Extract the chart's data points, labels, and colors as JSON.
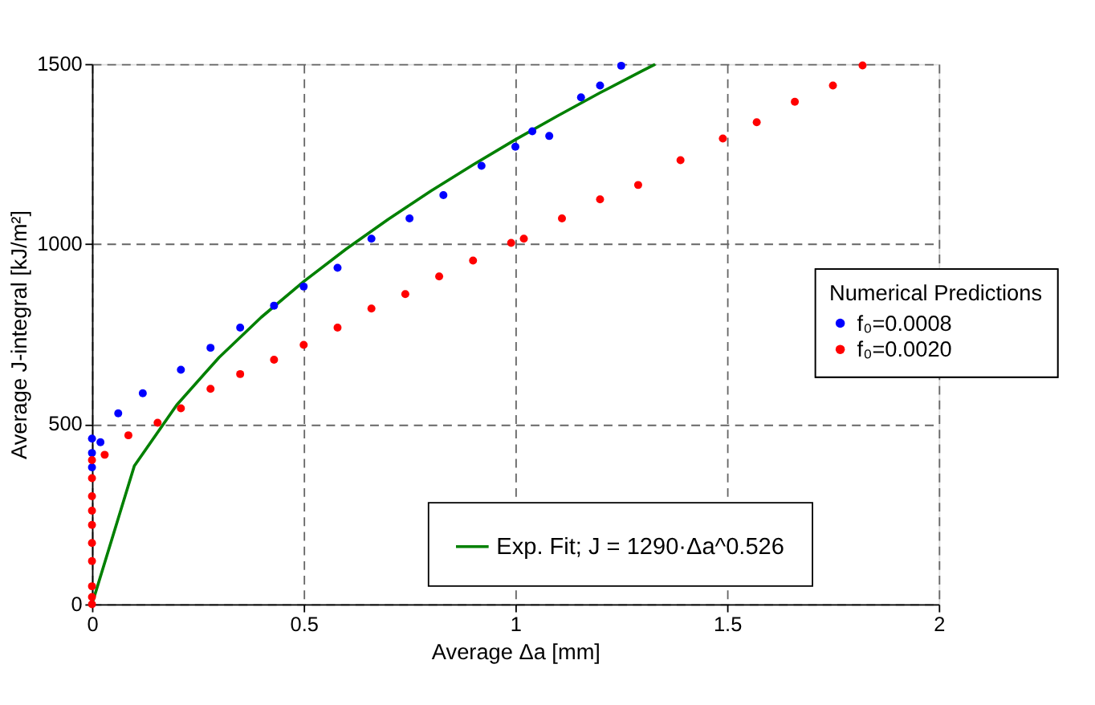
{
  "chart_data": {
    "type": "scatter",
    "xlabel": "Average Δa [mm]",
    "ylabel": "Average J-integral [kJ/m²]",
    "legend_title": "Numerical Predictions",
    "xlim": [
      0,
      2
    ],
    "ylim": [
      0,
      1500
    ],
    "xticks": [
      0,
      0.5,
      1,
      1.5,
      2
    ],
    "yticks": [
      0,
      500,
      1000,
      1500
    ],
    "grid": true,
    "legend": "right",
    "series": [
      {
        "name": "f₀=0.0008",
        "color": "#0000ff",
        "marker": "circle",
        "x": [
          0,
          0,
          0,
          0.02,
          0.062,
          0.12,
          0.21,
          0.28,
          0.35,
          0.43,
          0.5,
          0.58,
          0.66,
          0.75,
          0.83,
          0.92,
          1.0,
          1.04,
          1.08,
          1.155,
          1.2,
          1.25
        ],
        "values": [
          380,
          420,
          460,
          450,
          530,
          586,
          651,
          712,
          768,
          829,
          882,
          934,
          1015,
          1071,
          1136,
          1217,
          1270,
          1313,
          1300,
          1407,
          1440,
          1495
        ]
      },
      {
        "name": "f₀=0.0020",
        "color": "#ff0000",
        "marker": "circle",
        "x": [
          0,
          0,
          0,
          0,
          0,
          0,
          0,
          0,
          0,
          0,
          0.03,
          0.086,
          0.155,
          0.21,
          0.28,
          0.35,
          0.43,
          0.5,
          0.58,
          0.66,
          0.74,
          0.82,
          0.9,
          0.99,
          1.02,
          1.11,
          1.2,
          1.29,
          1.39,
          1.49,
          1.57,
          1.66,
          1.75,
          1.82
        ],
        "values": [
          0,
          20,
          50,
          120,
          170,
          220,
          260,
          300,
          350,
          400,
          415,
          469,
          504,
          544,
          598,
          639,
          679,
          720,
          768,
          821,
          861,
          910,
          954,
          1003,
          1015,
          1071,
          1124,
          1164,
          1233,
          1293,
          1338,
          1395,
          1440,
          1496
        ]
      },
      {
        "name": "Exp. Fit; J = 1290·Δa^0.526",
        "color": "#008000",
        "type": "line",
        "line_style": "solid",
        "x": [
          0,
          0.1,
          0.2,
          0.3,
          0.4,
          0.5,
          0.6,
          0.7,
          0.8,
          0.9,
          1.0,
          1.1,
          1.2,
          1.3,
          1.33
        ],
        "values": [
          0,
          384,
          553,
          685,
          797,
          896,
          986,
          1069,
          1147,
          1220,
          1290,
          1356,
          1420,
          1481,
          1499
        ]
      }
    ]
  }
}
